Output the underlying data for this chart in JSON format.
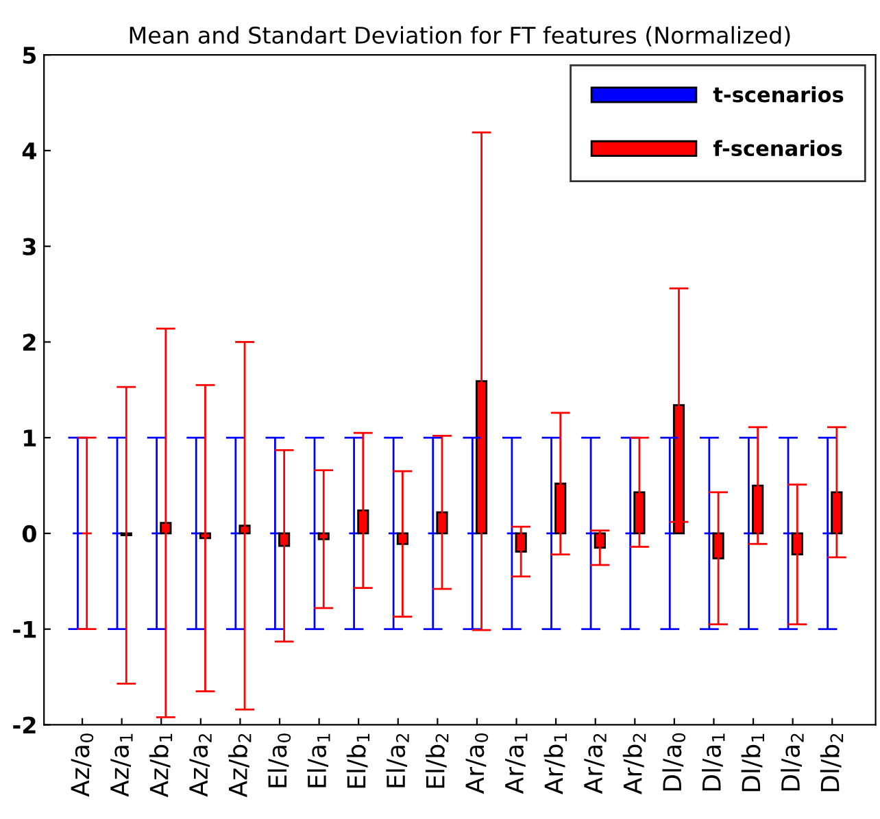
{
  "chart_data": {
    "type": "bar",
    "title": "Mean and Standart Deviation for FT features (Normalized)",
    "categories": [
      "Az/a$_{0}$",
      "Az/a$_{1}$",
      "Az/b$_{1}$",
      "Az/a$_{2}$",
      "Az/b$_{2}$",
      "El/a$_{0}$",
      "El/a$_{1}$",
      "El/b$_{1}$",
      "El/a$_{2}$",
      "El/b$_{2}$",
      "Ar/a$_{0}$",
      "Ar/a$_{1}$",
      "Ar/b$_{1}$",
      "Ar/a$_{2}$",
      "Ar/b$_{2}$",
      "Dl/a$_{0}$",
      "Dl/a$_{1}$",
      "Dl/b$_{1}$",
      "Dl/a$_{2}$",
      "Dl/b$_{2}$"
    ],
    "series": [
      {
        "name": "t-scenarios",
        "color": "#0000ff",
        "values": [
          0,
          0,
          0,
          0,
          0,
          0,
          0,
          0,
          0,
          0,
          0,
          0,
          0,
          0,
          0,
          0,
          0,
          0,
          0,
          0
        ],
        "errors": [
          1,
          1,
          1,
          1,
          1,
          1,
          1,
          1,
          1,
          1,
          1,
          1,
          1,
          1,
          1,
          1,
          1,
          1,
          1,
          1
        ]
      },
      {
        "name": "f-scenarios",
        "color": "#ff0000",
        "values": [
          0,
          -0.02,
          0.11,
          -0.05,
          0.08,
          -0.13,
          -0.06,
          0.24,
          -0.11,
          0.22,
          1.59,
          -0.19,
          0.52,
          -0.15,
          0.43,
          1.34,
          -0.26,
          0.5,
          -0.22,
          0.43
        ],
        "errors": [
          1.0,
          1.55,
          2.03,
          1.6,
          1.92,
          1.0,
          0.72,
          0.81,
          0.76,
          0.8,
          2.6,
          0.26,
          0.74,
          0.18,
          0.57,
          1.22,
          0.69,
          0.61,
          0.73,
          0.68
        ]
      }
    ],
    "ylim": [
      -2,
      5
    ],
    "yticks": [
      -2,
      -1,
      0,
      1,
      2,
      3,
      4,
      5
    ],
    "grid": false,
    "legend": "top right"
  }
}
